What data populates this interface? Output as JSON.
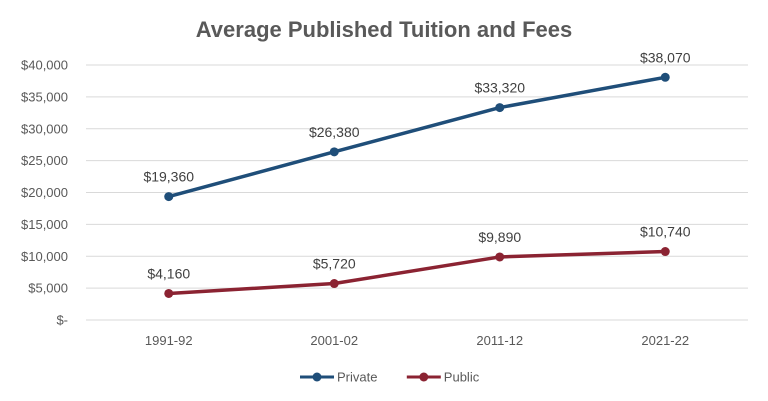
{
  "chart_data": {
    "type": "line",
    "title": "Average Published Tuition and Fees",
    "xlabel": "",
    "ylabel": "",
    "categories": [
      "1991-92",
      "2001-02",
      "2011-12",
      "2021-22"
    ],
    "series": [
      {
        "name": "Private",
        "color": "#1f4e79",
        "values": [
          19360,
          26380,
          33320,
          38070
        ],
        "labels": [
          "$19,360",
          "$26,380",
          "$33,320",
          "$38,070"
        ]
      },
      {
        "name": "Public",
        "color": "#8b2332",
        "values": [
          4160,
          5720,
          9890,
          10740
        ],
        "labels": [
          "$4,160",
          "$5,720",
          "$9,890",
          "$10,740"
        ]
      }
    ],
    "ylim": [
      0,
      40000
    ],
    "yticks": [
      0,
      5000,
      10000,
      15000,
      20000,
      25000,
      30000,
      35000,
      40000
    ],
    "ytick_labels": [
      "$-",
      "$5,000",
      "$10,000",
      "$15,000",
      "$20,000",
      "$25,000",
      "$30,000",
      "$35,000",
      "$40,000"
    ],
    "grid": true,
    "legend_position": "bottom",
    "gridline_color": "#d9d9d9"
  }
}
